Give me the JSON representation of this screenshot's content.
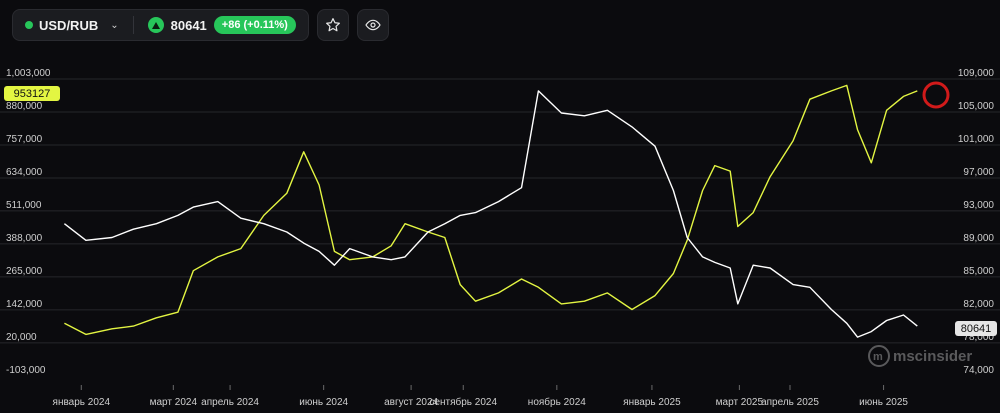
{
  "header": {
    "symbol": "USD/RUB",
    "price": "80641",
    "change": "+86 (+0.11%)",
    "icons": [
      "chevron-down-icon",
      "triangle-up-icon",
      "star-icon",
      "eye-icon"
    ]
  },
  "watermark": "mscinsider",
  "colors": {
    "left_series": "#e3f542",
    "right_series": "#ffffff",
    "up": "#27c65a",
    "marker": "#d11a1a"
  },
  "badges": {
    "left_current": "953127",
    "right_current": "80641"
  },
  "chart_data": {
    "type": "line",
    "title": "",
    "xlabel": "",
    "ylabel": "",
    "grid": true,
    "x_ticks": [
      "январь 2024",
      "март 2024",
      "апрель 2024",
      "июнь 2024",
      "август 2024",
      "сентябрь 2024",
      "ноябрь 2024",
      "январь 2025",
      "март 2025",
      "апрель 2025",
      "июнь 2025"
    ],
    "y_left_ticks": [
      "1,003,000",
      "880,000",
      "757,000",
      "634,000",
      "511,000",
      "388,000",
      "265,000",
      "142,000",
      "20,000",
      "-103,000"
    ],
    "y_right_ticks": [
      "109,000",
      "105,000",
      "101,000",
      "97,000",
      "93,000",
      "89,000",
      "85,000",
      "82,000",
      "78,000",
      "74,000"
    ],
    "ylim_left": [
      -103000,
      1003000
    ],
    "series": [
      {
        "axis": "left",
        "color": "#e3f542",
        "x": [
          "2024-01-01",
          "2024-01-15",
          "2024-02-01",
          "2024-02-15",
          "2024-03-01",
          "2024-03-15",
          "2024-03-25",
          "2024-04-10",
          "2024-04-25",
          "2024-05-10",
          "2024-05-25",
          "2024-06-05",
          "2024-06-15",
          "2024-06-25",
          "2024-07-05",
          "2024-07-20",
          "2024-08-01",
          "2024-08-10",
          "2024-08-25",
          "2024-09-05",
          "2024-09-15",
          "2024-09-25",
          "2024-10-10",
          "2024-10-25",
          "2024-11-05",
          "2024-11-20",
          "2024-12-05",
          "2024-12-20",
          "2025-01-05",
          "2025-01-20",
          "2025-02-01",
          "2025-02-10",
          "2025-02-20",
          "2025-02-28",
          "2025-03-10",
          "2025-03-15",
          "2025-03-25",
          "2025-04-05",
          "2025-04-20",
          "2025-05-01",
          "2025-05-15",
          "2025-05-25",
          "2025-06-01",
          "2025-06-10",
          "2025-06-20",
          "2025-07-01",
          "2025-07-10"
        ],
        "y": [
          120000,
          80000,
          100000,
          110000,
          140000,
          160000,
          310000,
          360000,
          390000,
          510000,
          590000,
          740000,
          620000,
          380000,
          350000,
          360000,
          400000,
          480000,
          450000,
          430000,
          260000,
          200000,
          230000,
          280000,
          250000,
          190000,
          200000,
          230000,
          170000,
          220000,
          300000,
          420000,
          600000,
          690000,
          670000,
          470000,
          520000,
          650000,
          780000,
          930000,
          960000,
          980000,
          820000,
          700000,
          890000,
          940000,
          960000
        ]
      },
      {
        "axis": "left",
        "color": "#ffffff",
        "x": [
          "2024-01-01",
          "2024-01-15",
          "2024-02-01",
          "2024-02-15",
          "2024-03-01",
          "2024-03-15",
          "2024-03-25",
          "2024-04-10",
          "2024-04-25",
          "2024-05-10",
          "2024-05-25",
          "2024-06-05",
          "2024-06-15",
          "2024-06-25",
          "2024-07-05",
          "2024-07-20",
          "2024-08-01",
          "2024-08-10",
          "2024-08-25",
          "2024-09-05",
          "2024-09-15",
          "2024-09-25",
          "2024-10-10",
          "2024-10-25",
          "2024-11-05",
          "2024-11-20",
          "2024-12-05",
          "2024-12-20",
          "2025-01-05",
          "2025-01-20",
          "2025-02-01",
          "2025-02-10",
          "2025-02-20",
          "2025-02-28",
          "2025-03-10",
          "2025-03-15",
          "2025-03-25",
          "2025-04-05",
          "2025-04-20",
          "2025-05-01",
          "2025-05-15",
          "2025-05-25",
          "2025-06-01",
          "2025-06-10",
          "2025-06-20",
          "2025-07-01",
          "2025-07-10"
        ],
        "y": [
          480000,
          420000,
          430000,
          460000,
          480000,
          510000,
          540000,
          560000,
          500000,
          480000,
          450000,
          410000,
          380000,
          330000,
          390000,
          360000,
          350000,
          360000,
          450000,
          480000,
          510000,
          520000,
          560000,
          610000,
          960000,
          880000,
          870000,
          890000,
          830000,
          760000,
          600000,
          430000,
          360000,
          340000,
          320000,
          190000,
          330000,
          320000,
          260000,
          250000,
          170000,
          120000,
          70000,
          90000,
          130000,
          150000,
          110000
        ]
      }
    ]
  }
}
